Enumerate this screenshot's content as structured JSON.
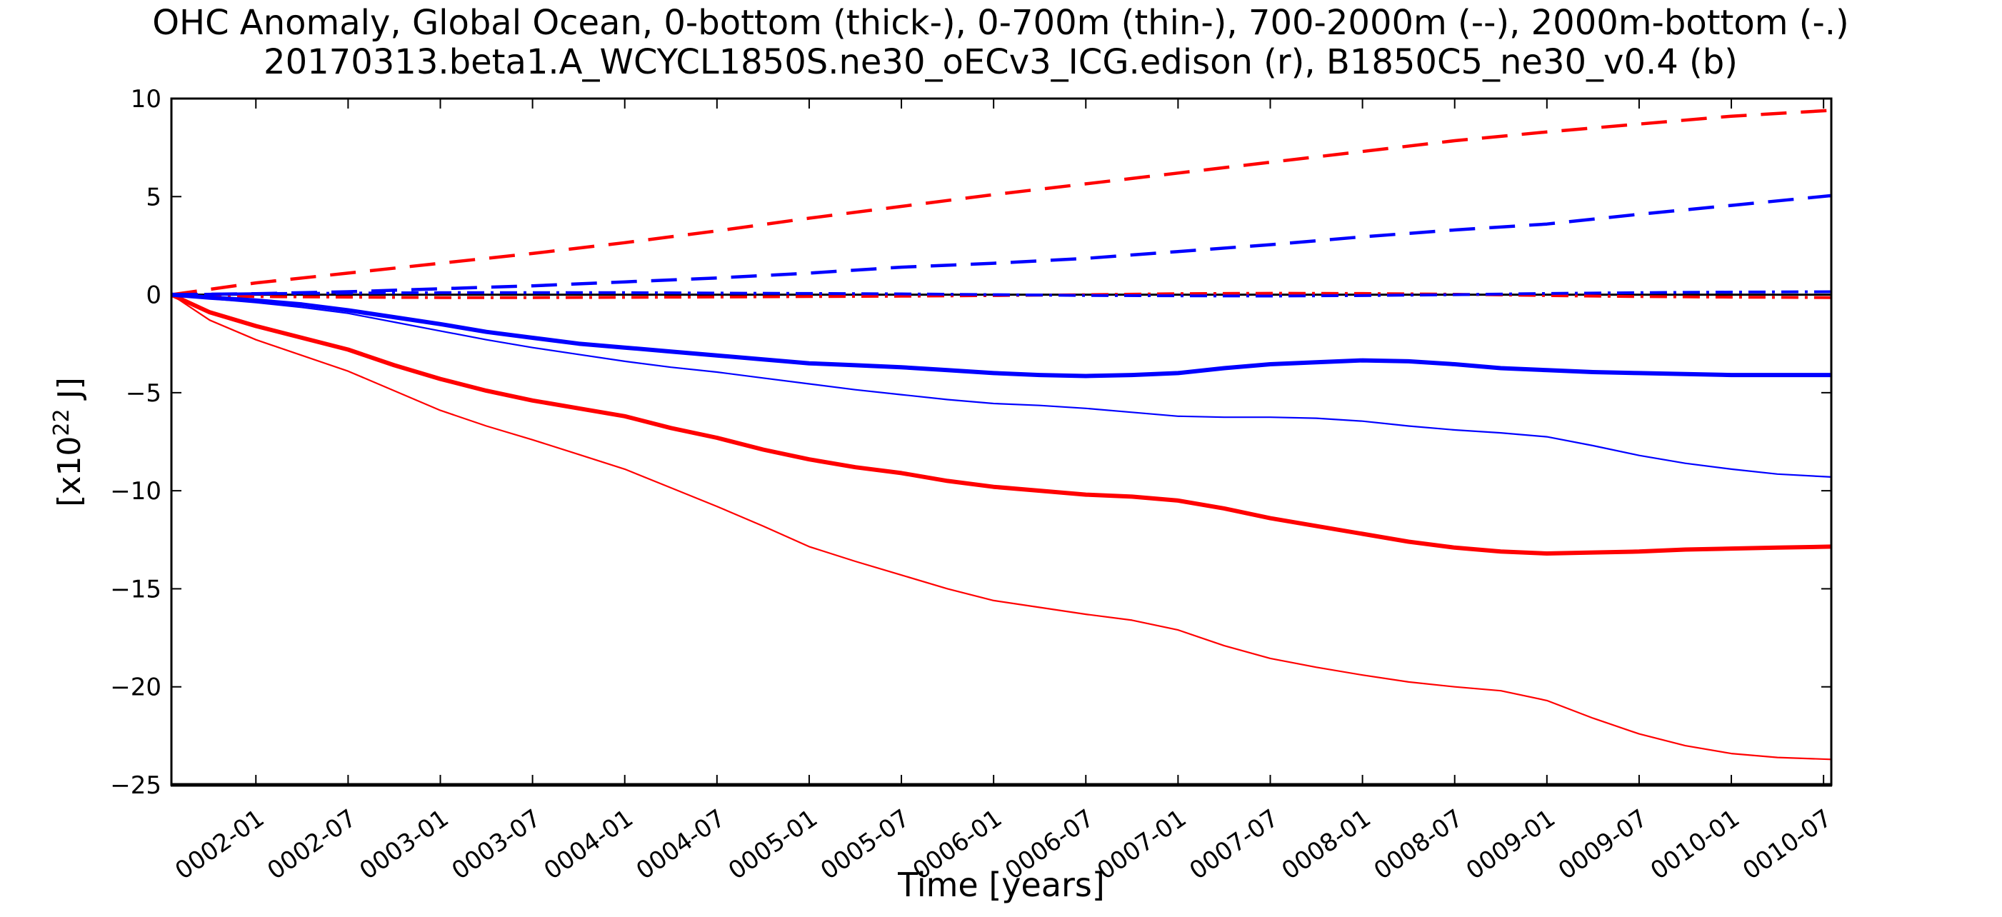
{
  "chart_data": {
    "type": "line",
    "title": "OHC Anomaly, Global Ocean, 0-bottom (thick-), 0-700m (thin-), 700-2000m (--), 2000m-bottom (-.)",
    "subtitle": "20170313.beta1.A_WCYCL1850S.ne30_oECv3_ICG.edison (r), B1850C5_ne30_v0.4 (b)",
    "xlabel": "Time [years]",
    "ylabel": {
      "prefix": "[x10",
      "superscript": "22",
      "suffix": " J]"
    },
    "x_range_years": [
      1.542,
      10.542
    ],
    "ylim": [
      -25,
      10
    ],
    "grid": false,
    "legend_note": "line styles encode depth range (thick solid 0-bottom, thin solid 0-700m, dashed 700-2000m, dash-dot 2000m-bottom); red = edison beta1 run (r), blue = B1850C5_ne30_v0.4 (b)",
    "colors": {
      "red_run": "#ff0000",
      "blue_run": "#0000ff",
      "zero_line": "#000000"
    },
    "yticks": [
      {
        "value": 10,
        "label": "10"
      },
      {
        "value": 5,
        "label": "5"
      },
      {
        "value": 0,
        "label": "0"
      },
      {
        "value": -5,
        "label": "−5"
      },
      {
        "value": -10,
        "label": "−10"
      },
      {
        "value": -15,
        "label": "−15"
      },
      {
        "value": -20,
        "label": "−20"
      },
      {
        "value": -25,
        "label": "−25"
      }
    ],
    "xticks": [
      {
        "year_decimal": 2.0,
        "label": "0002-01"
      },
      {
        "year_decimal": 2.5,
        "label": "0002-07"
      },
      {
        "year_decimal": 3.0,
        "label": "0003-01"
      },
      {
        "year_decimal": 3.5,
        "label": "0003-07"
      },
      {
        "year_decimal": 4.0,
        "label": "0004-01"
      },
      {
        "year_decimal": 4.5,
        "label": "0004-07"
      },
      {
        "year_decimal": 5.0,
        "label": "0005-01"
      },
      {
        "year_decimal": 5.5,
        "label": "0005-07"
      },
      {
        "year_decimal": 6.0,
        "label": "0006-01"
      },
      {
        "year_decimal": 6.5,
        "label": "0006-07"
      },
      {
        "year_decimal": 7.0,
        "label": "0007-01"
      },
      {
        "year_decimal": 7.5,
        "label": "0007-07"
      },
      {
        "year_decimal": 8.0,
        "label": "0008-01"
      },
      {
        "year_decimal": 8.5,
        "label": "0008-07"
      },
      {
        "year_decimal": 9.0,
        "label": "0009-01"
      },
      {
        "year_decimal": 9.5,
        "label": "0009-07"
      },
      {
        "year_decimal": 10.0,
        "label": "0010-01"
      },
      {
        "year_decimal": 10.5,
        "label": "0010-07"
      }
    ],
    "series": [
      {
        "name": "zero-reference-line",
        "run": "reference",
        "depth_range": "zero",
        "color": "#000000",
        "style": "solid",
        "width": "zero",
        "x": [
          1.542,
          10.542
        ],
        "y": [
          0,
          0
        ]
      },
      {
        "name": "red-2000m-bottom",
        "run": "20170313.beta1.A_WCYCL1850S.ne30_oECv3_ICG.edison",
        "depth_range": "2000m-bottom",
        "color": "#ff0000",
        "style": "dashdot",
        "width": "dashdot",
        "x": [
          1.542,
          2,
          2.5,
          3,
          3.5,
          4,
          4.5,
          5,
          5.5,
          6,
          6.5,
          7,
          7.5,
          8,
          8.5,
          9,
          9.5,
          10,
          10.542
        ],
        "y": [
          0,
          -0.1,
          -0.13,
          -0.15,
          -0.15,
          -0.14,
          -0.12,
          -0.1,
          -0.08,
          -0.05,
          0.0,
          0.05,
          0.07,
          0.06,
          0.02,
          -0.05,
          -0.1,
          -0.13,
          -0.15
        ]
      },
      {
        "name": "blue-2000m-bottom",
        "run": "B1850C5_ne30_v0.4",
        "depth_range": "2000m-bottom",
        "color": "#0000ff",
        "style": "dashdot",
        "width": "dashdot",
        "x": [
          1.542,
          2,
          2.5,
          3,
          3.5,
          4,
          4.5,
          5,
          5.5,
          6,
          6.5,
          7,
          7.5,
          8,
          8.5,
          9,
          9.5,
          10,
          10.542
        ],
        "y": [
          0,
          0.05,
          0.08,
          0.1,
          0.1,
          0.1,
          0.08,
          0.06,
          0.04,
          0.0,
          -0.04,
          -0.06,
          -0.07,
          -0.05,
          0.0,
          0.06,
          0.1,
          0.13,
          0.15
        ]
      },
      {
        "name": "red-700-2000m",
        "run": "20170313.beta1.A_WCYCL1850S.ne30_oECv3_ICG.edison",
        "depth_range": "700-2000m",
        "color": "#ff0000",
        "style": "dashed",
        "width": "dashed",
        "x": [
          1.542,
          2,
          2.5,
          3,
          3.5,
          4,
          4.5,
          5,
          5.5,
          6,
          6.5,
          7,
          7.5,
          8,
          8.5,
          9,
          9.5,
          10,
          10.542
        ],
        "y": [
          0,
          0.6,
          1.1,
          1.6,
          2.1,
          2.65,
          3.25,
          3.9,
          4.5,
          5.1,
          5.65,
          6.2,
          6.75,
          7.3,
          7.85,
          8.3,
          8.7,
          9.1,
          9.4
        ]
      },
      {
        "name": "blue-700-2000m",
        "run": "B1850C5_ne30_v0.4",
        "depth_range": "700-2000m",
        "color": "#0000ff",
        "style": "dashed",
        "width": "dashed",
        "x": [
          1.542,
          2,
          2.5,
          3,
          3.5,
          4,
          4.5,
          5,
          5.5,
          6,
          6.5,
          7,
          7.5,
          8,
          8.5,
          9,
          9.5,
          10,
          10.542
        ],
        "y": [
          0,
          0.05,
          0.15,
          0.3,
          0.45,
          0.65,
          0.85,
          1.1,
          1.4,
          1.6,
          1.85,
          2.2,
          2.55,
          2.95,
          3.3,
          3.6,
          4.1,
          4.55,
          5.05
        ]
      },
      {
        "name": "red-0-700m",
        "run": "20170313.beta1.A_WCYCL1850S.ne30_oECv3_ICG.edison",
        "depth_range": "0-700m",
        "color": "#ff0000",
        "style": "solid",
        "width": "thin",
        "x": [
          1.542,
          1.75,
          2,
          2.25,
          2.5,
          2.75,
          3,
          3.25,
          3.5,
          3.75,
          4,
          4.25,
          4.5,
          4.75,
          5,
          5.25,
          5.5,
          5.75,
          6,
          6.25,
          6.5,
          6.75,
          7,
          7.25,
          7.5,
          7.75,
          8,
          8.25,
          8.5,
          8.75,
          9,
          9.25,
          9.5,
          9.75,
          10,
          10.25,
          10.542
        ],
        "y": [
          0,
          -1.3,
          -2.3,
          -3.1,
          -3.9,
          -4.9,
          -5.9,
          -6.7,
          -7.4,
          -8.15,
          -8.9,
          -9.85,
          -10.8,
          -11.8,
          -12.85,
          -13.6,
          -14.3,
          -15.0,
          -15.6,
          -15.95,
          -16.3,
          -16.6,
          -17.1,
          -17.9,
          -18.55,
          -19.0,
          -19.4,
          -19.75,
          -20.0,
          -20.2,
          -20.7,
          -21.6,
          -22.4,
          -23.0,
          -23.4,
          -23.6,
          -23.7
        ]
      },
      {
        "name": "blue-0-700m",
        "run": "B1850C5_ne30_v0.4",
        "depth_range": "0-700m",
        "color": "#0000ff",
        "style": "solid",
        "width": "thin",
        "x": [
          1.542,
          1.75,
          2,
          2.25,
          2.5,
          2.75,
          3,
          3.25,
          3.5,
          3.75,
          4,
          4.25,
          4.5,
          4.75,
          5,
          5.25,
          5.5,
          5.75,
          6,
          6.25,
          6.5,
          6.75,
          7,
          7.25,
          7.5,
          7.75,
          8,
          8.25,
          8.5,
          8.75,
          9,
          9.25,
          9.5,
          9.75,
          10,
          10.25,
          10.542
        ],
        "y": [
          0,
          -0.2,
          -0.4,
          -0.65,
          -0.95,
          -1.4,
          -1.85,
          -2.3,
          -2.7,
          -3.05,
          -3.4,
          -3.7,
          -3.95,
          -4.25,
          -4.55,
          -4.85,
          -5.1,
          -5.35,
          -5.55,
          -5.65,
          -5.8,
          -6.0,
          -6.2,
          -6.25,
          -6.25,
          -6.3,
          -6.45,
          -6.7,
          -6.9,
          -7.05,
          -7.25,
          -7.7,
          -8.2,
          -8.6,
          -8.9,
          -9.15,
          -9.3
        ]
      },
      {
        "name": "red-0-bottom",
        "run": "20170313.beta1.A_WCYCL1850S.ne30_oECv3_ICG.edison",
        "depth_range": "0-bottom",
        "color": "#ff0000",
        "style": "solid",
        "width": "thick",
        "x": [
          1.542,
          1.75,
          2,
          2.25,
          2.5,
          2.75,
          3,
          3.25,
          3.5,
          3.75,
          4,
          4.25,
          4.5,
          4.75,
          5,
          5.25,
          5.5,
          5.75,
          6,
          6.25,
          6.5,
          6.75,
          7,
          7.25,
          7.5,
          7.75,
          8,
          8.25,
          8.5,
          8.75,
          9,
          9.25,
          9.5,
          9.75,
          10,
          10.25,
          10.542
        ],
        "y": [
          0,
          -0.9,
          -1.6,
          -2.2,
          -2.8,
          -3.6,
          -4.3,
          -4.9,
          -5.4,
          -5.8,
          -6.2,
          -6.8,
          -7.3,
          -7.9,
          -8.4,
          -8.8,
          -9.1,
          -9.5,
          -9.8,
          -10.0,
          -10.2,
          -10.3,
          -10.5,
          -10.9,
          -11.4,
          -11.8,
          -12.2,
          -12.6,
          -12.9,
          -13.1,
          -13.2,
          -13.15,
          -13.1,
          -13.0,
          -12.95,
          -12.9,
          -12.85
        ]
      },
      {
        "name": "blue-0-bottom",
        "run": "B1850C5_ne30_v0.4",
        "depth_range": "0-bottom",
        "color": "#0000ff",
        "style": "solid",
        "width": "thick",
        "x": [
          1.542,
          1.75,
          2,
          2.25,
          2.5,
          2.75,
          3,
          3.25,
          3.5,
          3.75,
          4,
          4.25,
          4.5,
          4.75,
          5,
          5.25,
          5.5,
          5.75,
          6,
          6.25,
          6.5,
          6.75,
          7,
          7.25,
          7.5,
          7.75,
          8,
          8.25,
          8.5,
          8.75,
          9,
          9.25,
          9.5,
          9.75,
          10,
          10.25,
          10.542
        ],
        "y": [
          0,
          -0.15,
          -0.3,
          -0.5,
          -0.8,
          -1.15,
          -1.5,
          -1.9,
          -2.2,
          -2.5,
          -2.7,
          -2.9,
          -3.1,
          -3.3,
          -3.5,
          -3.6,
          -3.7,
          -3.85,
          -4.0,
          -4.1,
          -4.15,
          -4.1,
          -4.0,
          -3.75,
          -3.55,
          -3.45,
          -3.35,
          -3.4,
          -3.55,
          -3.75,
          -3.85,
          -3.95,
          -4.0,
          -4.05,
          -4.1,
          -4.1,
          -4.1
        ]
      }
    ]
  }
}
